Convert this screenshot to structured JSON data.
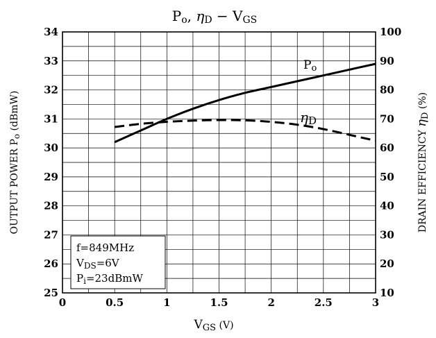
{
  "chart_data": {
    "type": "line",
    "title": "Po, ηD − VGS",
    "xlabel": "VGS (V)",
    "ylabel_left": "OUTPUT POWER Po (dBmW)",
    "ylabel_right": "DRAIN EFFICIENCY ηD (%)",
    "xlim": [
      0,
      3
    ],
    "ylim_left": [
      25,
      34
    ],
    "ylim_right": [
      10,
      100
    ],
    "x_ticks": [
      "0",
      "0.5",
      "1",
      "1.5",
      "2",
      "2.5",
      "3"
    ],
    "y_ticks_left": [
      "25",
      "26",
      "27",
      "28",
      "29",
      "30",
      "31",
      "32",
      "33",
      "34"
    ],
    "y_ticks_right": [
      "10",
      "20",
      "30",
      "40",
      "50",
      "60",
      "70",
      "80",
      "90",
      "100"
    ],
    "grid": true,
    "series": [
      {
        "name": "Po",
        "axis": "left",
        "style": "solid",
        "x": [
          0.5,
          0.75,
          1.0,
          1.25,
          1.5,
          1.75,
          2.0,
          2.25,
          2.5,
          2.75,
          3.0
        ],
        "y": [
          30.2,
          30.6,
          31.0,
          31.35,
          31.65,
          31.9,
          32.1,
          32.3,
          32.5,
          32.7,
          32.9
        ]
      },
      {
        "name": "ηD",
        "axis": "right",
        "style": "dashed",
        "x": [
          0.5,
          0.75,
          1.0,
          1.25,
          1.5,
          1.75,
          2.0,
          2.25,
          2.5,
          2.75,
          3.0
        ],
        "y": [
          67.2,
          68.3,
          69.0,
          69.4,
          69.6,
          69.5,
          69.0,
          68.0,
          66.5,
          64.5,
          62.5
        ]
      }
    ],
    "conditions": {
      "freq": "f=849MHz",
      "vds": "VDS=6V",
      "pi": "Pi=23dBmW"
    }
  }
}
